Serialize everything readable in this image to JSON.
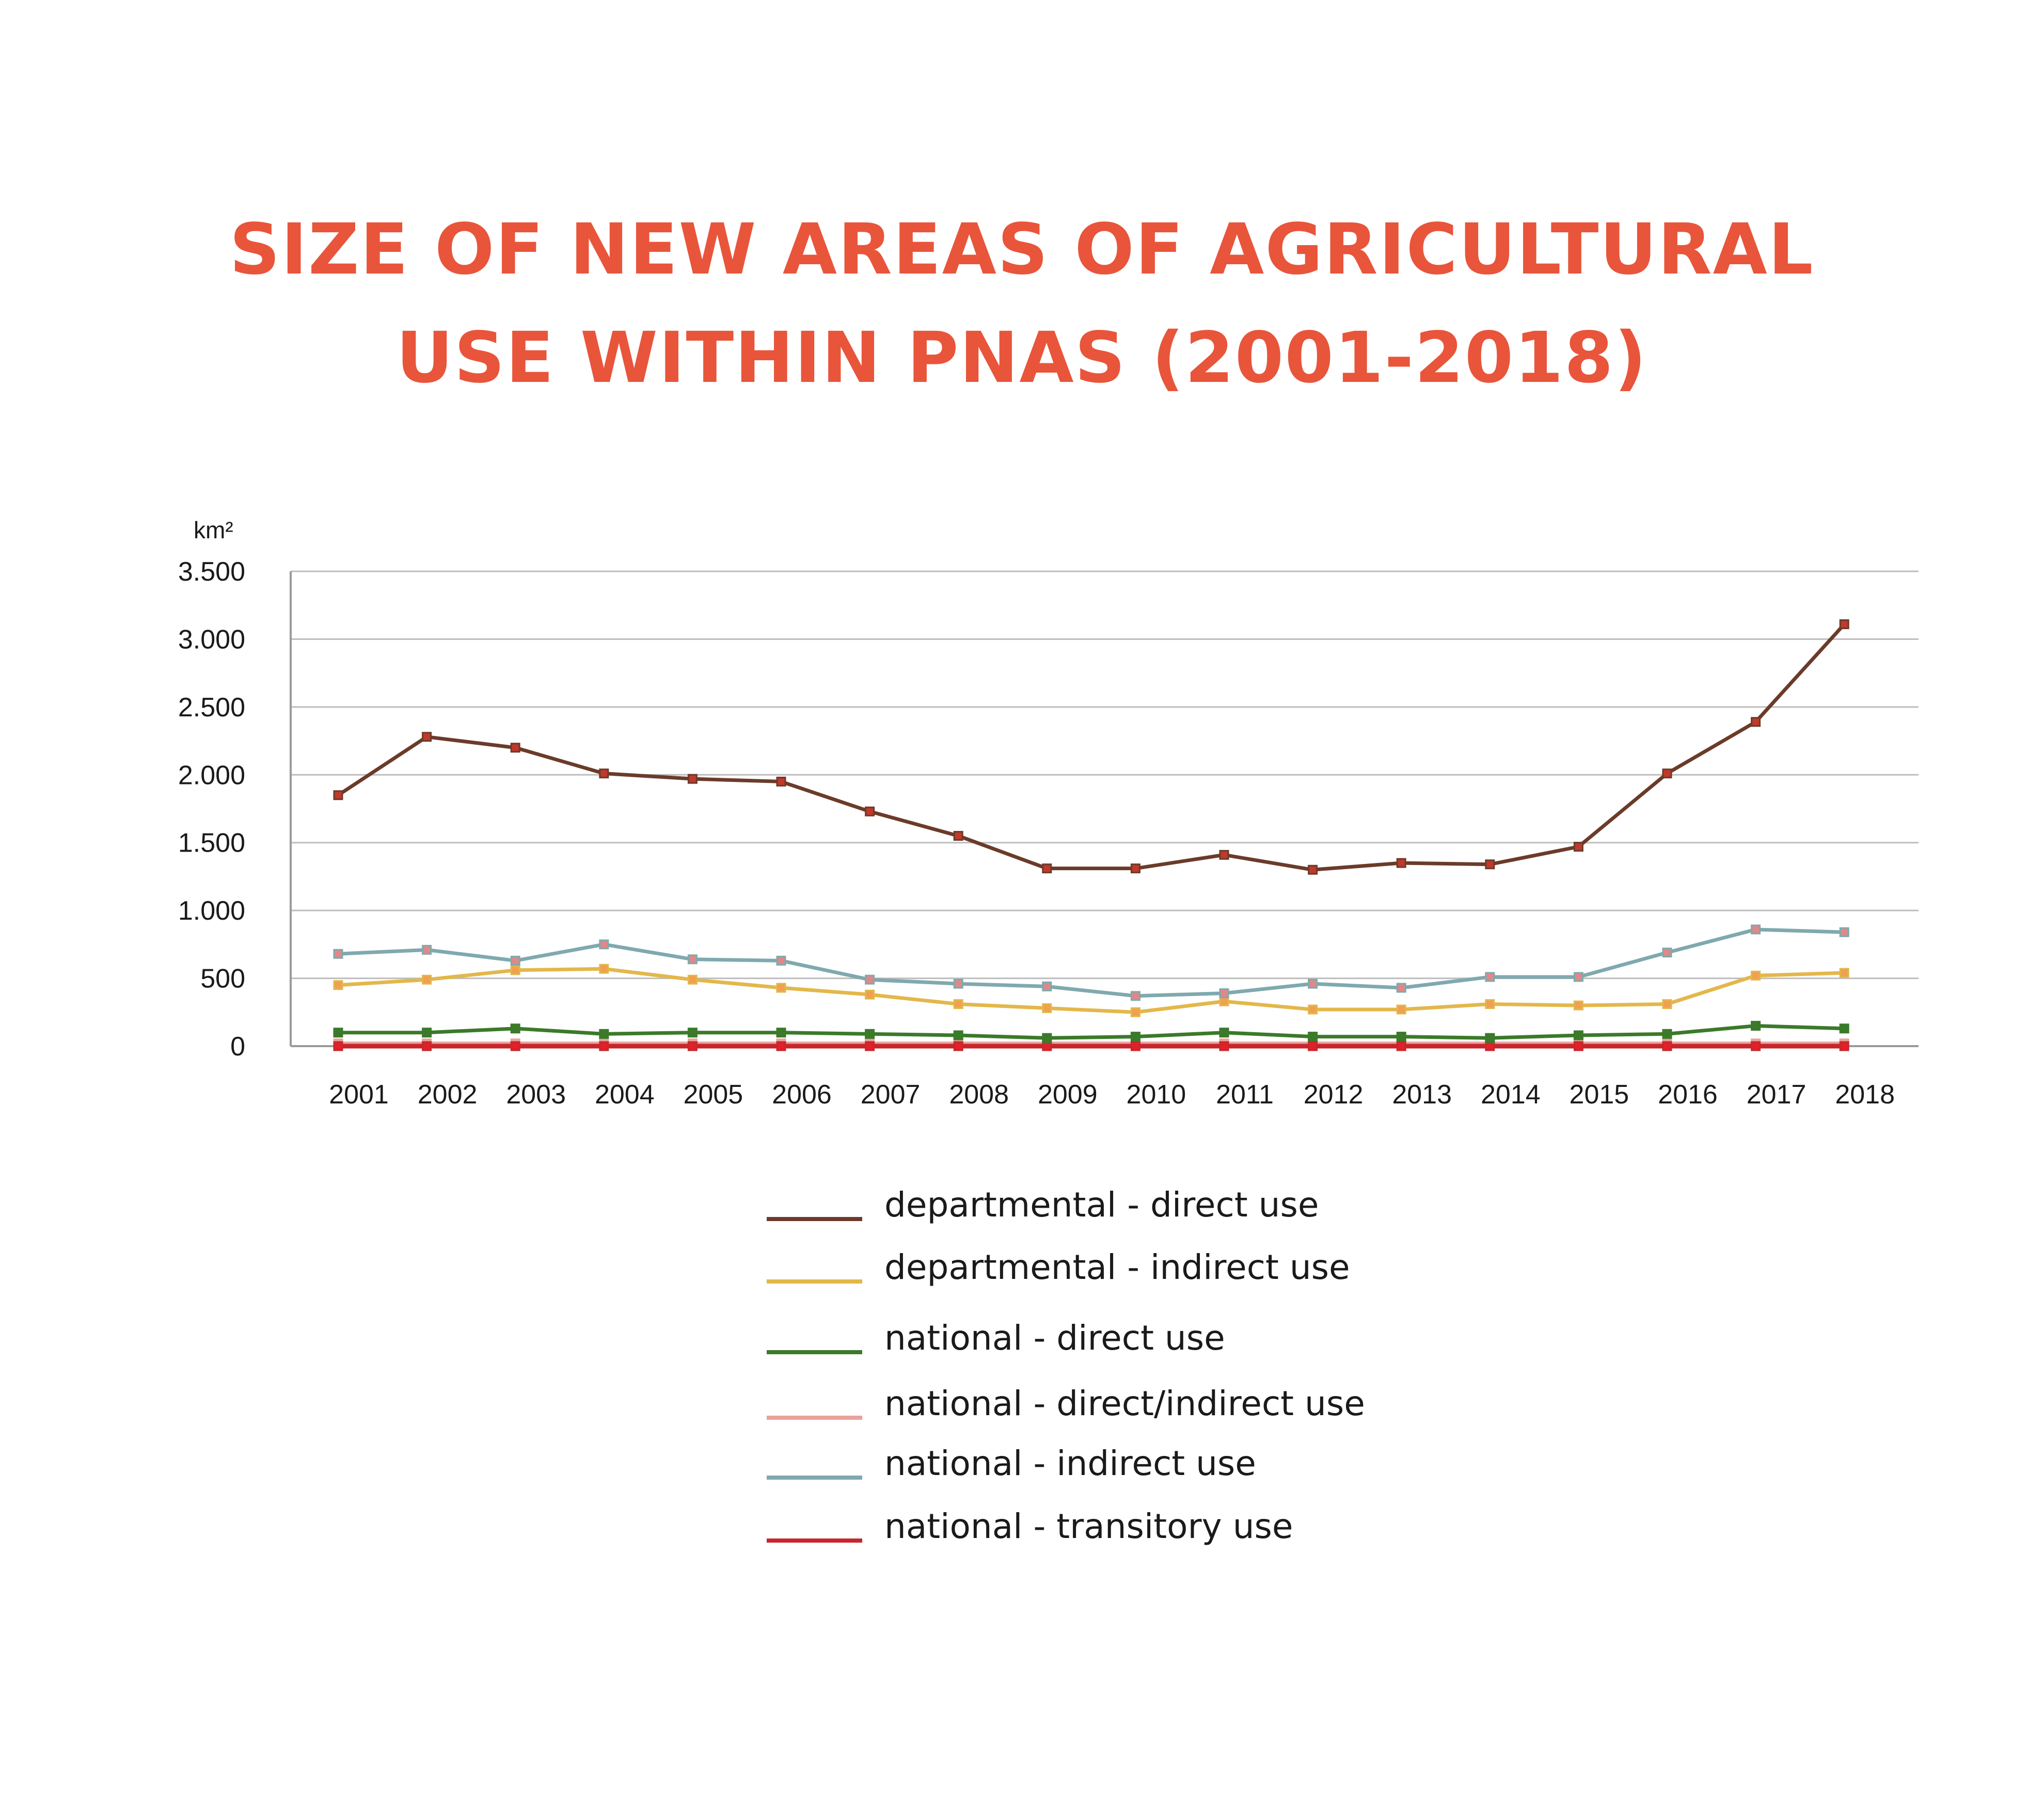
{
  "chart_data": {
    "type": "line",
    "title_lines": [
      "SIZE OF NEW AREAS OF AGRICULTURAL",
      "USE WITHIN PNAS (2001-2018)"
    ],
    "ylabel": "km²",
    "xlabel": "",
    "ylim": [
      0,
      3500
    ],
    "yticks": [
      {
        "value": 0,
        "label": "0"
      },
      {
        "value": 500,
        "label": "500"
      },
      {
        "value": 1000,
        "label": "1.000"
      },
      {
        "value": 1500,
        "label": "1.500"
      },
      {
        "value": 2000,
        "label": "2.000"
      },
      {
        "value": 2500,
        "label": "2.500"
      },
      {
        "value": 3000,
        "label": "3.000"
      },
      {
        "value": 3500,
        "label": "3.500"
      }
    ],
    "grid": true,
    "legend_position": "bottom",
    "categories": [
      "2001",
      "2002",
      "2003",
      "2004",
      "2005",
      "2006",
      "2007",
      "2008",
      "2009",
      "2010",
      "2011",
      "2012",
      "2013",
      "2014",
      "2015",
      "2016",
      "2017",
      "2018"
    ],
    "series": [
      {
        "name": "departmental - direct use",
        "color": "#6b3b2a",
        "marker": "#c0392b",
        "values": [
          1850,
          2280,
          2200,
          2010,
          1970,
          1950,
          1730,
          1550,
          1310,
          1310,
          1410,
          1300,
          1350,
          1340,
          1470,
          2010,
          2390,
          3110
        ]
      },
      {
        "name": "departmental - indirect use",
        "color": "#e3b74a",
        "marker": "#f0a050",
        "values": [
          450,
          490,
          560,
          570,
          490,
          430,
          380,
          310,
          280,
          250,
          330,
          270,
          270,
          310,
          300,
          310,
          520,
          540
        ]
      },
      {
        "name": "national - direct use",
        "color": "#3a7a2a",
        "marker": "#3a7a2a",
        "values": [
          100,
          100,
          130,
          90,
          100,
          100,
          90,
          80,
          60,
          70,
          100,
          70,
          70,
          60,
          80,
          90,
          150,
          130
        ]
      },
      {
        "name": "national - direct/indirect use",
        "color": "#e8a29a",
        "marker": "#e8a29a",
        "values": [
          20,
          20,
          20,
          20,
          20,
          20,
          20,
          20,
          20,
          20,
          20,
          20,
          20,
          20,
          20,
          20,
          20,
          20
        ]
      },
      {
        "name": "national - indirect use",
        "color": "#7fa9ae",
        "marker": "#e08888",
        "values": [
          680,
          710,
          630,
          750,
          640,
          630,
          490,
          460,
          440,
          370,
          390,
          460,
          430,
          510,
          510,
          690,
          860,
          840
        ]
      },
      {
        "name": "national - transitory use",
        "color": "#c8262c",
        "marker": "#e0202a",
        "values": [
          0,
          0,
          0,
          0,
          0,
          0,
          0,
          0,
          0,
          0,
          0,
          0,
          0,
          0,
          0,
          0,
          0,
          0
        ]
      }
    ]
  }
}
